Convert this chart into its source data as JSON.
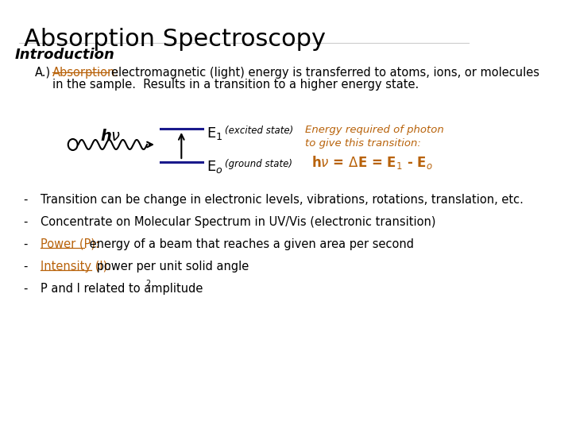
{
  "title": "Absorption Spectroscopy",
  "subtitle": "Introduction",
  "bg_color": "#ffffff",
  "title_color": "#000000",
  "subtitle_color": "#000000",
  "orange_color": "#b8620a",
  "dark_blue": "#1a1a8c",
  "black": "#000000",
  "title_fontsize": 22,
  "subtitle_fontsize": 13,
  "body_fontsize": 10.5,
  "bullet_A_line1": "electromagnetic (light) energy is transferred to atoms, ions, or molecules",
  "bullet_A_line2": "in the sample.  Results in a transition to a higher energy state.",
  "bullet1": "Transition can be change in electronic levels, vibrations, rotations, translation, etc.",
  "bullet2": "Concentrate on Molecular Spectrum in UV/Vis (electronic transition)",
  "bullet3_orange": "Power (P):",
  "bullet3_rest": " energy of a beam that reaches a given area per second",
  "bullet4_orange": "Intensity (I):",
  "bullet4_rest": " power per unit solid angle",
  "bullet5": "P and I related to amplitude"
}
